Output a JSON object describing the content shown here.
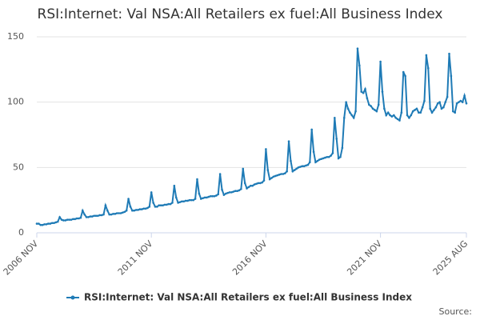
{
  "chart_data": {
    "type": "line",
    "title": "RSI:Internet: Val NSA:All Retailers ex fuel:All Business Index",
    "source_label": "Source:",
    "categories": [
      "2006 NOV",
      null,
      null,
      null,
      null,
      null,
      null,
      null,
      null,
      null,
      null,
      null,
      null,
      null,
      null,
      null,
      null,
      null,
      null,
      null,
      null,
      null,
      null,
      null,
      null,
      null,
      null,
      null,
      null,
      null,
      null,
      null,
      null,
      null,
      null,
      null,
      null,
      null,
      null,
      null,
      null,
      null,
      null,
      null,
      null,
      null,
      null,
      null,
      null,
      null,
      null,
      null,
      null,
      null,
      null,
      null,
      null,
      null,
      null,
      null,
      "2011 NOV",
      null,
      null,
      null,
      null,
      null,
      null,
      null,
      null,
      null,
      null,
      null,
      null,
      null,
      null,
      null,
      null,
      null,
      null,
      null,
      null,
      null,
      null,
      null,
      null,
      null,
      null,
      null,
      null,
      null,
      null,
      null,
      null,
      null,
      null,
      null,
      null,
      null,
      null,
      null,
      null,
      null,
      null,
      null,
      null,
      null,
      null,
      null,
      null,
      null,
      null,
      null,
      null,
      null,
      null,
      null,
      null,
      null,
      null,
      null,
      "2016 NOV",
      null,
      null,
      null,
      null,
      null,
      null,
      null,
      null,
      null,
      null,
      null,
      null,
      null,
      null,
      null,
      null,
      null,
      null,
      null,
      null,
      null,
      null,
      null,
      null,
      null,
      null,
      null,
      null,
      null,
      null,
      null,
      null,
      null,
      null,
      null,
      null,
      null,
      null,
      null,
      null,
      null,
      null,
      null,
      null,
      null,
      null,
      null,
      null,
      null,
      null,
      null,
      null,
      null,
      null,
      null,
      null,
      null,
      null,
      null,
      "2021 NOV",
      null,
      null,
      null,
      null,
      null,
      null,
      null,
      null,
      null,
      null,
      null,
      null,
      null,
      null,
      null,
      null,
      null,
      null,
      null,
      null,
      null,
      null,
      null,
      null,
      null,
      null,
      null,
      null,
      null,
      null,
      null,
      null,
      null,
      null,
      null,
      null,
      null,
      null,
      null,
      null,
      null,
      null,
      null,
      null,
      "2025 AUG"
    ],
    "series": [
      {
        "name": "RSI:Internet: Val NSA:All Retailers ex fuel:All Business Index",
        "color": "#1f7bb6",
        "values": [
          7,
          7,
          6,
          6,
          6.5,
          6.5,
          7,
          7,
          7.5,
          7.5,
          8,
          8.5,
          12,
          10,
          9.5,
          9.5,
          10,
          10,
          10,
          10.5,
          10.5,
          11,
          11,
          11.5,
          17,
          14,
          12,
          12,
          12.5,
          12.5,
          13,
          13,
          13,
          13.5,
          13.5,
          14,
          21,
          17,
          14,
          14,
          14.5,
          14.5,
          15,
          15,
          15,
          15.5,
          16,
          17,
          26,
          20,
          17,
          17,
          17.5,
          17.5,
          18,
          18,
          18.5,
          18.5,
          19,
          20,
          31,
          23,
          20,
          20,
          21,
          21,
          21,
          21.5,
          21.5,
          22,
          22,
          23,
          36,
          27,
          23,
          23.5,
          24,
          24,
          24.5,
          24.5,
          25,
          25,
          25,
          26,
          41,
          30,
          26,
          26.5,
          27,
          27,
          27.5,
          28,
          28,
          28,
          28.5,
          29.5,
          45,
          33,
          29,
          30,
          30.5,
          31,
          31,
          31.5,
          32,
          32,
          32.5,
          33.5,
          49,
          38,
          34,
          35,
          36,
          36,
          37,
          37.5,
          38,
          38,
          38.5,
          40,
          64,
          48,
          41,
          42,
          43,
          43.5,
          44,
          44.5,
          45,
          45,
          45.5,
          47,
          70,
          55,
          47,
          48,
          49,
          50,
          50.5,
          51,
          51,
          51.5,
          52,
          54,
          79,
          62,
          54,
          55,
          56,
          56.5,
          57,
          57.5,
          58,
          58,
          59,
          61,
          88,
          72,
          57,
          58,
          65,
          88,
          100,
          95,
          92,
          90,
          88,
          93,
          141,
          128,
          108,
          107,
          110,
          103,
          98,
          97,
          95,
          94,
          93,
          98,
          131,
          108,
          95,
          90,
          92,
          90,
          89,
          90,
          88,
          87,
          86,
          92,
          123,
          120,
          90,
          88,
          90,
          93,
          94,
          95,
          92,
          92,
          96,
          101,
          136,
          126,
          95,
          92,
          94,
          96,
          99,
          100,
          95,
          96,
          100,
          104,
          137,
          120,
          93,
          92,
          99,
          100,
          101,
          100,
          105,
          99
        ]
      }
    ],
    "ylim": [
      0,
      150
    ],
    "yticks": [
      0,
      50,
      100,
      150
    ],
    "grid": true
  }
}
